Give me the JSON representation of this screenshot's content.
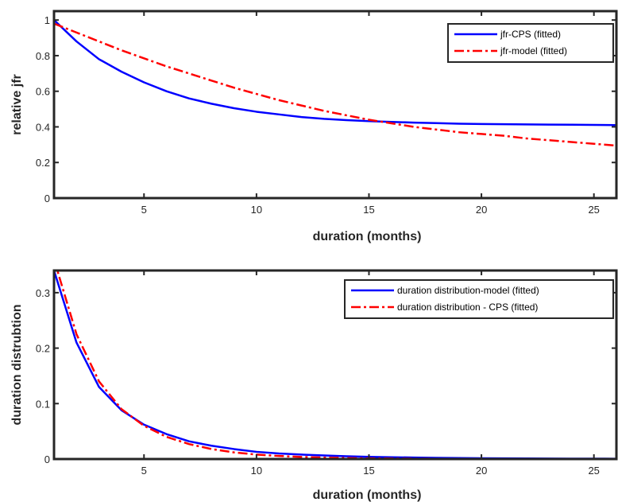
{
  "chart_data": [
    {
      "type": "line",
      "xlabel": "duration (months)",
      "ylabel": "relative jfr",
      "xlim": [
        1,
        26
      ],
      "ylim": [
        0,
        1.05
      ],
      "xticks": [
        5,
        10,
        15,
        20,
        25
      ],
      "yticks": [
        0,
        0.2,
        0.4,
        0.6,
        0.8,
        1
      ],
      "ytick_labels": [
        "0",
        "0.2",
        "0.4",
        "0.6",
        "0.8",
        "1"
      ],
      "grid": false,
      "legend_position": "top-right",
      "x": [
        1,
        2,
        3,
        4,
        5,
        6,
        7,
        8,
        9,
        10,
        11,
        12,
        13,
        14,
        15,
        16,
        17,
        18,
        19,
        20,
        21,
        22,
        23,
        24,
        25,
        26
      ],
      "series": [
        {
          "name": "jfr-CPS (fitted)",
          "color": "#0000ff",
          "style": "solid",
          "values": [
            1.0,
            0.88,
            0.78,
            0.71,
            0.65,
            0.6,
            0.56,
            0.53,
            0.505,
            0.485,
            0.47,
            0.455,
            0.445,
            0.438,
            0.432,
            0.428,
            0.424,
            0.421,
            0.418,
            0.416,
            0.415,
            0.414,
            0.413,
            0.412,
            0.411,
            0.41
          ]
        },
        {
          "name": "jfr-model (fitted)",
          "color": "#ff0000",
          "style": "dashdot",
          "values": [
            0.98,
            0.93,
            0.88,
            0.83,
            0.785,
            0.74,
            0.7,
            0.66,
            0.62,
            0.585,
            0.55,
            0.52,
            0.49,
            0.465,
            0.44,
            0.42,
            0.4,
            0.385,
            0.37,
            0.36,
            0.35,
            0.335,
            0.325,
            0.315,
            0.305,
            0.295
          ]
        }
      ]
    },
    {
      "type": "line",
      "xlabel": "duration (months)",
      "ylabel": "duration distrubtion",
      "xlim": [
        1,
        26
      ],
      "ylim": [
        0,
        0.34
      ],
      "xticks": [
        5,
        10,
        15,
        20,
        25
      ],
      "yticks": [
        0,
        0.1,
        0.2,
        0.3
      ],
      "ytick_labels": [
        "0",
        "0.1",
        "0.2",
        "0.3"
      ],
      "grid": false,
      "legend_position": "top-right",
      "x": [
        1,
        2,
        3,
        4,
        5,
        6,
        7,
        8,
        9,
        10,
        11,
        12,
        13,
        14,
        15,
        16,
        17,
        18,
        19,
        20,
        21,
        22,
        23,
        24,
        25,
        26
      ],
      "series": [
        {
          "name": "duration distribution-model (fitted)",
          "color": "#0000ff",
          "style": "solid",
          "values": [
            0.34,
            0.21,
            0.13,
            0.088,
            0.062,
            0.045,
            0.032,
            0.024,
            0.018,
            0.013,
            0.01,
            0.008,
            0.0065,
            0.005,
            0.004,
            0.0033,
            0.0027,
            0.0022,
            0.0018,
            0.0015,
            0.0013,
            0.0011,
            0.0009,
            0.0008,
            0.0007,
            0.0006
          ]
        },
        {
          "name": "duration distribution - CPS (fitted)",
          "color": "#ff0000",
          "style": "dashdot",
          "values": [
            0.36,
            0.225,
            0.14,
            0.09,
            0.06,
            0.04,
            0.027,
            0.018,
            0.012,
            0.008,
            0.0055,
            0.0038,
            0.0026,
            0.0018,
            0.0012,
            0.0009,
            0.0006,
            0.0004,
            0.0003,
            0.0002,
            0.00015,
            0.0001,
            0.0001,
            0.0001,
            0.0001,
            0.0001
          ]
        }
      ]
    }
  ]
}
